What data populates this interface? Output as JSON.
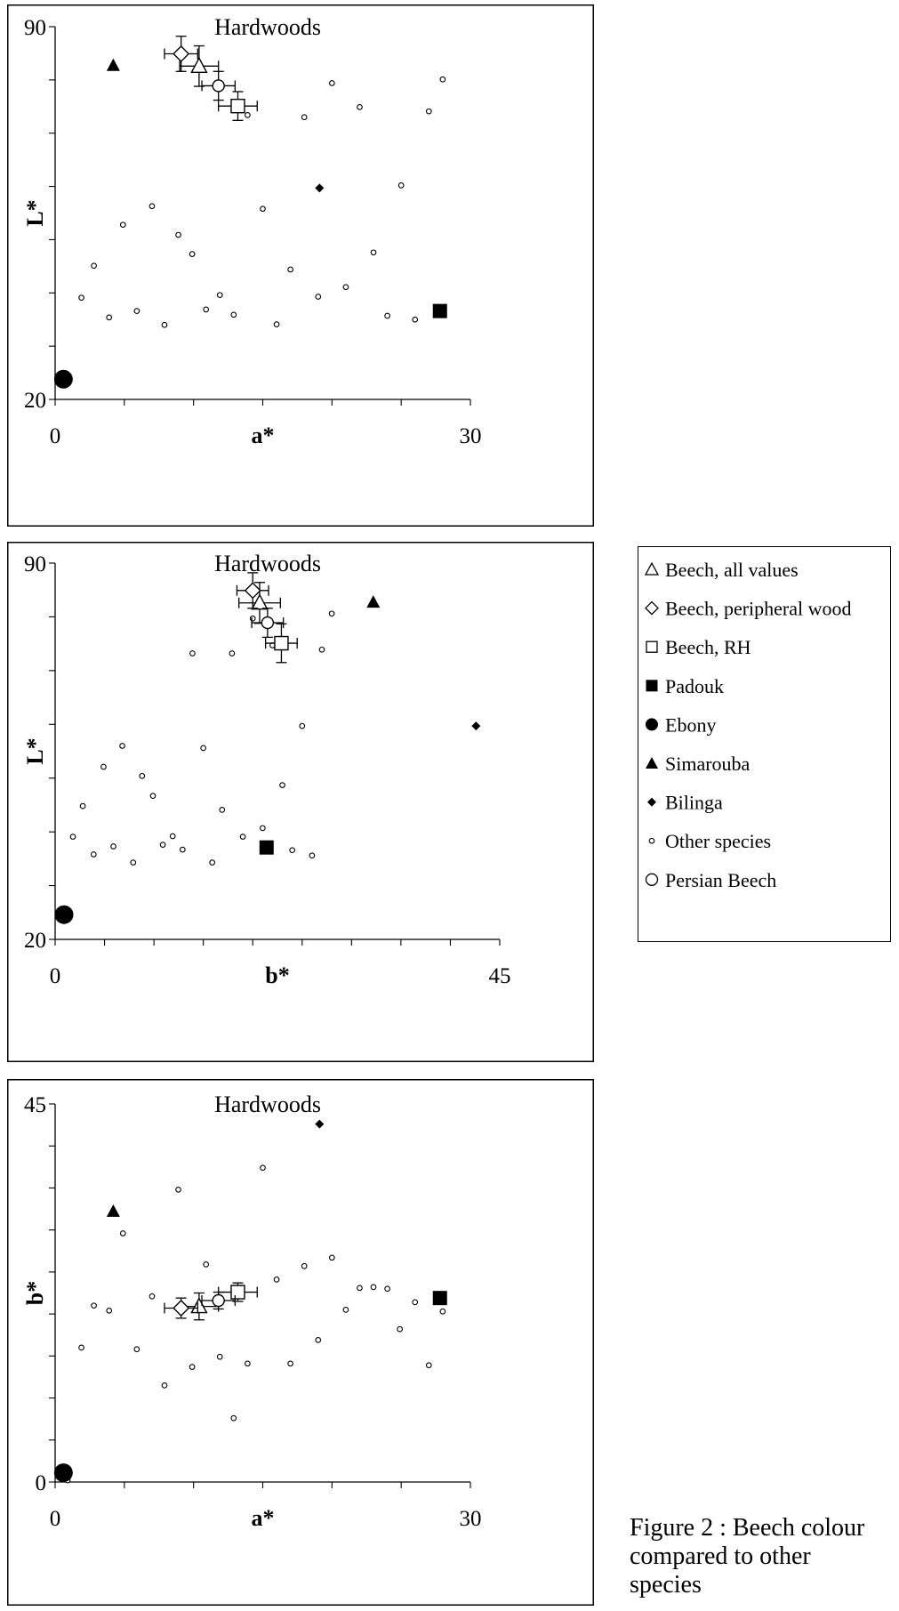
{
  "figure": {
    "caption_lines": [
      "Figure 2 : Beech colour",
      "compared to other",
      "species"
    ]
  },
  "legend": {
    "items": [
      {
        "symbol": "open-triangle",
        "label": "Beech, all values"
      },
      {
        "symbol": "open-diamond",
        "label": "Beech, peripheral wood"
      },
      {
        "symbol": "open-square",
        "label": "Beech, RH"
      },
      {
        "symbol": "filled-square",
        "label": "Padouk"
      },
      {
        "symbol": "filled-circle",
        "label": "Ebony"
      },
      {
        "symbol": "filled-triangle",
        "label": "Simarouba"
      },
      {
        "symbol": "filled-diamond",
        "label": "Bilinga"
      },
      {
        "symbol": "small-open-circle",
        "label": "Other species"
      },
      {
        "symbol": "open-circle",
        "label": "Persian Beech"
      }
    ]
  },
  "chart_data": [
    {
      "type": "scatter",
      "title": "Hardwoods",
      "xlabel": "a*",
      "ylabel": "L*",
      "xlim": [
        0,
        30
      ],
      "ylim": [
        20,
        90
      ],
      "x_tick_labels": [
        "0",
        "30"
      ],
      "y_tick_labels": [
        "20",
        "90"
      ],
      "x_minor_step": 5,
      "y_minor_step": 10,
      "grid": false,
      "series": [
        {
          "name": "Beech, all values",
          "symbol": "open-triangle",
          "points": [
            [
              10.4,
              82.6
            ]
          ],
          "xerr": 1.4,
          "yerr": 3.8
        },
        {
          "name": "Beech, peripheral wood",
          "symbol": "open-diamond",
          "points": [
            [
              9.1,
              84.9
            ]
          ],
          "xerr": 1.2,
          "yerr": 3.3
        },
        {
          "name": "Beech, RH",
          "symbol": "open-square",
          "points": [
            [
              13.2,
              75.1
            ]
          ],
          "xerr": 1.4,
          "yerr": 2.7
        },
        {
          "name": "Persian Beech",
          "symbol": "open-circle",
          "points": [
            [
              11.8,
              78.9
            ]
          ],
          "xerr": 1.2,
          "yerr": 2.7
        },
        {
          "name": "Padouk",
          "symbol": "filled-square",
          "points": [
            [
              27.8,
              36.6
            ]
          ]
        },
        {
          "name": "Ebony",
          "symbol": "filled-circle",
          "points": [
            [
              0.6,
              23.8
            ]
          ]
        },
        {
          "name": "Simarouba",
          "symbol": "filled-triangle",
          "points": [
            [
              4.2,
              82.7
            ]
          ]
        },
        {
          "name": "Bilinga",
          "symbol": "filled-diamond",
          "points": [
            [
              19.1,
              59.7
            ]
          ]
        },
        {
          "name": "Other species",
          "symbol": "small-open-circle",
          "points": [
            [
              1.9,
              39.1
            ],
            [
              2.8,
              45.1
            ],
            [
              3.9,
              35.4
            ],
            [
              4.9,
              52.8
            ],
            [
              5.9,
              36.6
            ],
            [
              7.0,
              56.3
            ],
            [
              7.9,
              34.0
            ],
            [
              8.9,
              50.9
            ],
            [
              9.9,
              47.3
            ],
            [
              10.9,
              36.9
            ],
            [
              11.9,
              39.6
            ],
            [
              12.9,
              35.9
            ],
            [
              13.9,
              73.4
            ],
            [
              15.0,
              55.8
            ],
            [
              16.0,
              34.1
            ],
            [
              17.0,
              44.4
            ],
            [
              18.0,
              73.0
            ],
            [
              19.0,
              39.3
            ],
            [
              20.0,
              79.4
            ],
            [
              21.0,
              41.1
            ],
            [
              22.0,
              74.9
            ],
            [
              23.0,
              47.6
            ],
            [
              24.0,
              35.7
            ],
            [
              25.0,
              60.2
            ],
            [
              26.0,
              35.0
            ],
            [
              27.0,
              74.1
            ],
            [
              28.0,
              80.1
            ]
          ]
        }
      ]
    },
    {
      "type": "scatter",
      "title": "Hardwoods",
      "xlabel": "b*",
      "ylabel": "L*",
      "xlim": [
        0,
        45
      ],
      "ylim": [
        20,
        90
      ],
      "x_tick_labels": [
        "0",
        "45"
      ],
      "y_tick_labels": [
        "20",
        "90"
      ],
      "x_minor_step": 5,
      "y_minor_step": 10,
      "grid": false,
      "series": [
        {
          "name": "Beech, all values",
          "symbol": "open-triangle",
          "points": [
            [
              20.7,
              82.6
            ]
          ],
          "xerr": 2.1,
          "yerr": 3.8
        },
        {
          "name": "Beech, peripheral wood",
          "symbol": "open-diamond",
          "points": [
            [
              20.0,
              84.9
            ]
          ],
          "xerr": 1.6,
          "yerr": 3.3
        },
        {
          "name": "Beech, RH",
          "symbol": "open-square",
          "points": [
            [
              22.9,
              75.1
            ]
          ],
          "xerr": 1.6,
          "yerr": 3.6
        },
        {
          "name": "Persian Beech",
          "symbol": "open-circle",
          "points": [
            [
              21.5,
              78.9
            ]
          ],
          "xerr": 1.6,
          "yerr": 2.7
        },
        {
          "name": "Padouk",
          "symbol": "filled-square",
          "points": [
            [
              21.4,
              37.1
            ]
          ]
        },
        {
          "name": "Ebony",
          "symbol": "filled-circle",
          "points": [
            [
              0.9,
              24.6
            ]
          ]
        },
        {
          "name": "Simarouba",
          "symbol": "filled-triangle",
          "points": [
            [
              32.2,
              82.7
            ]
          ]
        },
        {
          "name": "Bilinga",
          "symbol": "filled-diamond",
          "points": [
            [
              42.6,
              59.7
            ]
          ]
        },
        {
          "name": "Other species",
          "symbol": "small-open-circle",
          "points": [
            [
              1.8,
              39.1
            ],
            [
              2.8,
              44.8
            ],
            [
              3.9,
              35.8
            ],
            [
              4.9,
              52.1
            ],
            [
              5.9,
              37.3
            ],
            [
              6.8,
              56.0
            ],
            [
              7.9,
              34.3
            ],
            [
              8.8,
              50.4
            ],
            [
              9.9,
              46.7
            ],
            [
              10.9,
              37.6
            ],
            [
              11.9,
              39.2
            ],
            [
              12.9,
              36.7
            ],
            [
              13.9,
              73.2
            ],
            [
              15.0,
              55.6
            ],
            [
              15.9,
              34.3
            ],
            [
              16.9,
              44.1
            ],
            [
              17.9,
              73.2
            ],
            [
              19.0,
              39.1
            ],
            [
              20.0,
              79.7
            ],
            [
              21.0,
              40.7
            ],
            [
              22.0,
              74.7
            ],
            [
              23.0,
              48.7
            ],
            [
              24.0,
              36.6
            ],
            [
              25.0,
              59.7
            ],
            [
              26.0,
              35.6
            ],
            [
              27.0,
              73.9
            ],
            [
              28.0,
              80.6
            ]
          ]
        }
      ]
    },
    {
      "type": "scatter",
      "title": "Hardwoods",
      "xlabel": "a*",
      "ylabel": "b*",
      "xlim": [
        0,
        30
      ],
      "ylim": [
        0,
        45
      ],
      "x_tick_labels": [
        "0",
        "30"
      ],
      "y_tick_labels": [
        "0",
        "45"
      ],
      "x_minor_step": 5,
      "y_minor_step": 5,
      "grid": false,
      "series": [
        {
          "name": "Beech, all values",
          "symbol": "open-triangle",
          "points": [
            [
              10.4,
              20.9
            ]
          ],
          "xerr": 1.4,
          "yerr": 1.6
        },
        {
          "name": "Beech, peripheral wood",
          "symbol": "open-diamond",
          "points": [
            [
              9.1,
              20.7
            ]
          ],
          "xerr": 1.2,
          "yerr": 1.2
        },
        {
          "name": "Beech, RH",
          "symbol": "open-square",
          "points": [
            [
              13.2,
              22.6
            ]
          ],
          "xerr": 1.4,
          "yerr": 1.1
        },
        {
          "name": "Persian Beech",
          "symbol": "open-circle",
          "points": [
            [
              11.8,
              21.6
            ]
          ],
          "xerr": 1.2,
          "yerr": 1.0
        },
        {
          "name": "Padouk",
          "symbol": "filled-square",
          "points": [
            [
              27.8,
              21.9
            ]
          ]
        },
        {
          "name": "Ebony",
          "symbol": "filled-circle",
          "points": [
            [
              0.6,
              1.1
            ]
          ]
        },
        {
          "name": "Simarouba",
          "symbol": "filled-triangle",
          "points": [
            [
              4.2,
              32.2
            ]
          ]
        },
        {
          "name": "Bilinga",
          "symbol": "filled-diamond",
          "points": [
            [
              19.1,
              42.6
            ]
          ]
        },
        {
          "name": "Other species",
          "symbol": "small-open-circle",
          "points": [
            [
              0.9,
              0.2
            ],
            [
              1.9,
              16.0
            ],
            [
              2.8,
              21.0
            ],
            [
              3.9,
              20.4
            ],
            [
              4.9,
              29.6
            ],
            [
              5.9,
              15.8
            ],
            [
              7.0,
              22.1
            ],
            [
              7.9,
              11.5
            ],
            [
              8.9,
              34.8
            ],
            [
              9.9,
              13.7
            ],
            [
              10.9,
              25.9
            ],
            [
              11.9,
              14.9
            ],
            [
              12.9,
              7.6
            ],
            [
              13.9,
              14.1
            ],
            [
              15.0,
              37.4
            ],
            [
              16.0,
              24.1
            ],
            [
              17.0,
              14.1
            ],
            [
              18.0,
              25.7
            ],
            [
              19.0,
              16.9
            ],
            [
              20.0,
              26.7
            ],
            [
              21.0,
              20.5
            ],
            [
              22.0,
              23.1
            ],
            [
              23.0,
              23.2
            ],
            [
              24.0,
              23.0
            ],
            [
              24.9,
              18.2
            ],
            [
              26.0,
              21.4
            ],
            [
              27.0,
              13.9
            ],
            [
              28.0,
              20.3
            ]
          ]
        }
      ]
    }
  ]
}
